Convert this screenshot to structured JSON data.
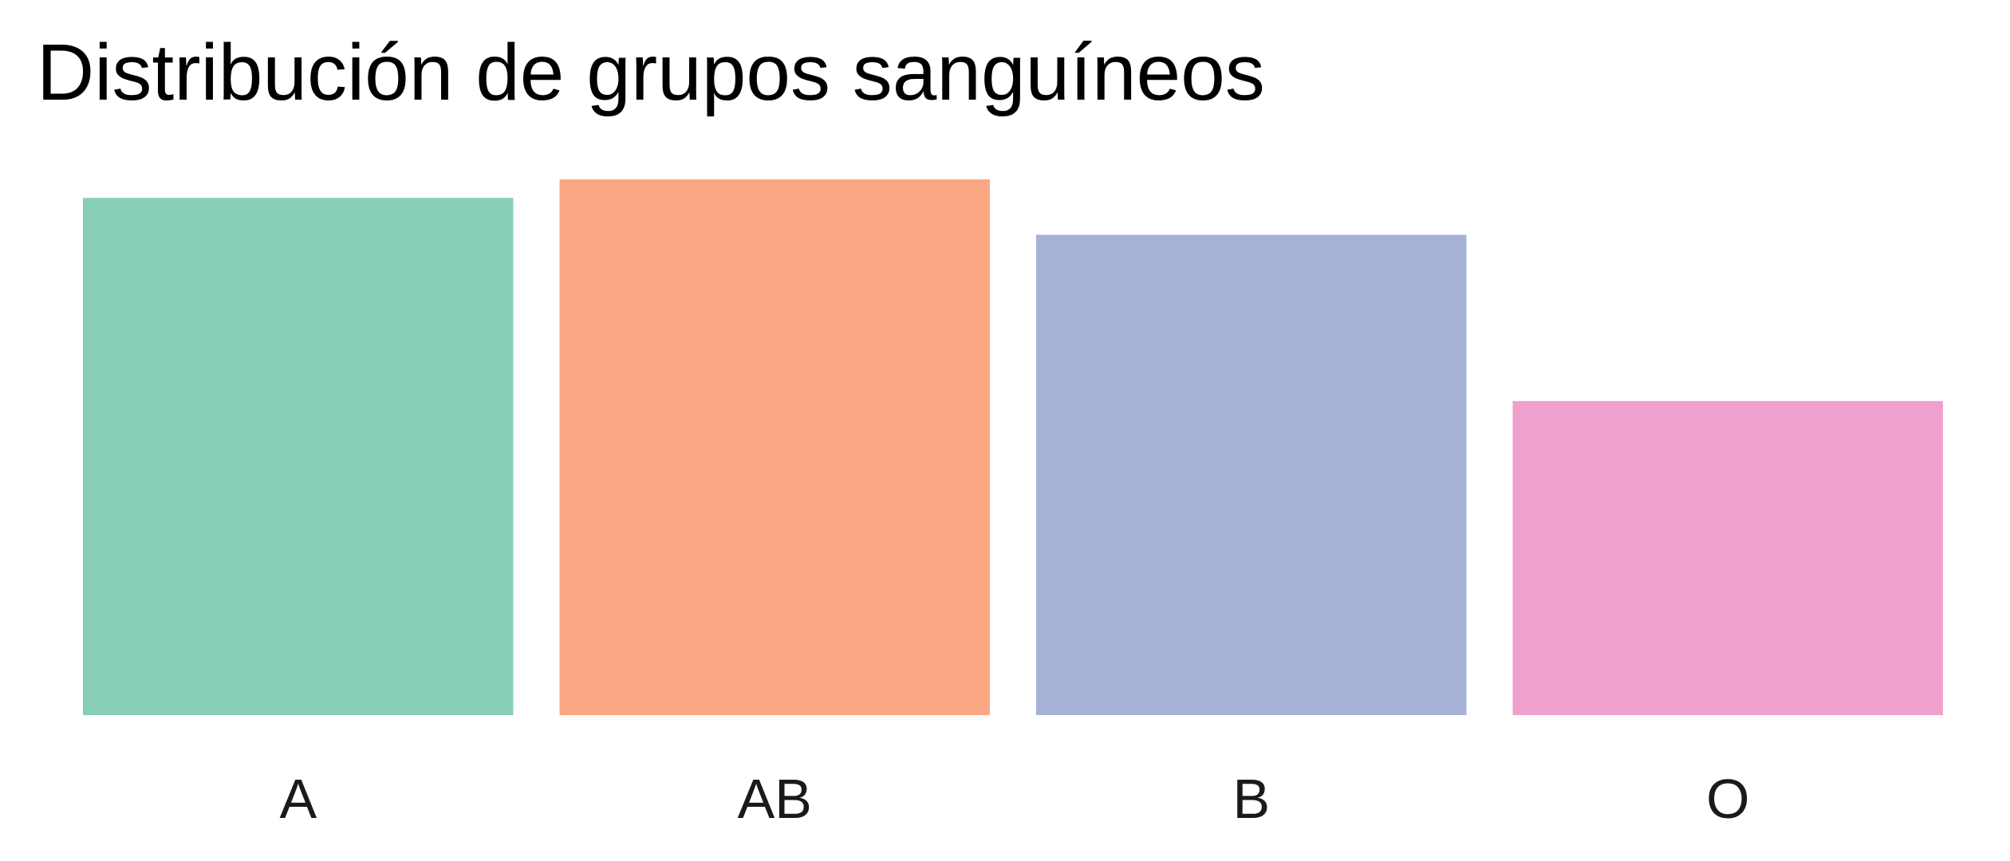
{
  "chart_data": {
    "type": "bar",
    "title": "Distribución de grupos sanguíneos",
    "xlabel": "",
    "ylabel": "",
    "categories": [
      "A",
      "AB",
      "B",
      "O"
    ],
    "values": [
      28,
      29,
      26,
      17
    ],
    "ylim": [
      0,
      29
    ],
    "grid": false,
    "y_axis_shown": false,
    "legend": "none",
    "colors": [
      "#87CFB7",
      "#FBA783",
      "#A5B2D5",
      "#EDA1CC"
    ]
  }
}
